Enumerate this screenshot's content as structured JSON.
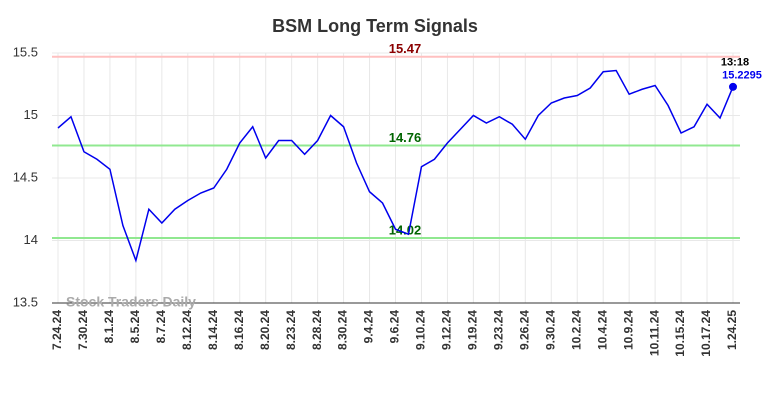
{
  "chart_data": {
    "type": "line",
    "title": "BSM Long Term Signals",
    "categories": [
      "7.24.24",
      null,
      "7.30.24",
      null,
      "8.1.24",
      null,
      "8.5.24",
      null,
      "8.7.24",
      null,
      "8.12.24",
      null,
      "8.14.24",
      null,
      "8.16.24",
      null,
      "8.20.24",
      null,
      "8.23.24",
      null,
      "8.28.24",
      null,
      "8.30.24",
      null,
      "9.4.24",
      null,
      "9.6.24",
      null,
      "9.10.24",
      null,
      "9.12.24",
      null,
      "9.19.24",
      null,
      "9.23.24",
      null,
      "9.26.24",
      null,
      "9.30.24",
      null,
      "10.2.24",
      null,
      "10.4.24",
      null,
      "10.9.24",
      null,
      "10.11.24",
      null,
      "10.15.24",
      null,
      "10.17.24",
      null,
      "1.24.25"
    ],
    "series": [
      {
        "color": "#0000ee",
        "values": [
          14.9,
          14.99,
          14.71,
          14.65,
          14.57,
          14.12,
          13.84,
          14.25,
          14.14,
          14.25,
          14.32,
          14.38,
          14.42,
          14.57,
          14.78,
          14.91,
          14.66,
          14.8,
          14.8,
          14.69,
          14.8,
          15.0,
          14.91,
          14.62,
          14.39,
          14.3,
          14.09,
          14.05,
          14.59,
          14.65,
          14.78,
          14.89,
          15.0,
          14.94,
          14.99,
          14.93,
          14.81,
          15.0,
          15.1,
          15.14,
          15.16,
          15.22,
          15.35,
          15.36,
          15.17,
          15.21,
          15.24,
          15.08,
          14.86,
          14.91,
          15.09,
          14.98,
          15.2295
        ]
      }
    ],
    "levels": [
      {
        "value": 15.47,
        "color": "#ffc0c0",
        "label_color": "#8b0000"
      },
      {
        "value": 14.76,
        "color": "#90e890",
        "label_color": "#006400"
      },
      {
        "value": 14.02,
        "color": "#90e890",
        "label_color": "#006400"
      }
    ],
    "last_time": "13:18",
    "watermark": "Stock Traders Daily",
    "ylim": [
      13.5,
      15.5
    ],
    "yticks": [
      13.5,
      14,
      14.5,
      15,
      15.5
    ],
    "grid": true
  }
}
